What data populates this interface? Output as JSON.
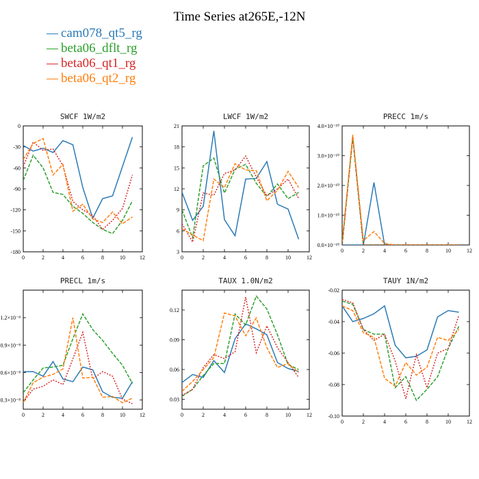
{
  "title": "Time Series at265E,-12N",
  "legend": [
    {
      "label": "cam078_qt5_rg",
      "color": "#2a7ab5"
    },
    {
      "label": "beta06_dflt_rg",
      "color": "#2ca02c"
    },
    {
      "label": "beta06_qt1_rg",
      "color": "#d62728"
    },
    {
      "label": "beta06_qt2_rg",
      "color": "#ff7f0e"
    }
  ],
  "chart_data": [
    {
      "type": "line",
      "title": "SWCF   1W/m2",
      "x": [
        0,
        1,
        2,
        3,
        4,
        5,
        6,
        7,
        8,
        9,
        10,
        11
      ],
      "xlim": [
        0,
        12
      ],
      "ylim": [
        -180,
        0
      ],
      "xticks": [
        "0",
        "2",
        "4",
        "6",
        "8",
        "10",
        "12"
      ],
      "yticks": [
        "-180",
        "-150",
        "-120",
        "-90",
        "-60",
        "-30",
        "0"
      ],
      "series": [
        {
          "name": "cam078_qt5_rg",
          "values": [
            -28,
            -36,
            -32,
            -38,
            -21,
            -27,
            -88,
            -132,
            -104,
            -100,
            -58,
            -16
          ]
        },
        {
          "name": "beta06_dflt_rg",
          "values": [
            -78,
            -42,
            -60,
            -95,
            -98,
            -115,
            -125,
            -138,
            -148,
            -154,
            -135,
            -107
          ]
        },
        {
          "name": "beta06_qt1_rg",
          "values": [
            -58,
            -23,
            -35,
            -33,
            -57,
            -108,
            -120,
            -128,
            -148,
            -135,
            -118,
            -70
          ]
        },
        {
          "name": "beta06_qt2_rg",
          "values": [
            -48,
            -25,
            -18,
            -70,
            -55,
            -122,
            -112,
            -133,
            -138,
            -123,
            -140,
            -130
          ]
        }
      ]
    },
    {
      "type": "line",
      "title": "LWCF   1W/m2",
      "x": [
        0,
        1,
        2,
        3,
        4,
        5,
        6,
        7,
        8,
        9,
        10,
        11
      ],
      "xlim": [
        0,
        12
      ],
      "ylim": [
        3,
        21
      ],
      "xticks": [
        "0",
        "2",
        "4",
        "6",
        "8",
        "10",
        "12"
      ],
      "yticks": [
        "3",
        "6",
        "9",
        "12",
        "15",
        "18",
        "21"
      ],
      "series": [
        {
          "name": "cam078_qt5_rg",
          "values": [
            11.5,
            7.5,
            9.5,
            20.3,
            7.6,
            5.3,
            13.4,
            13.5,
            15.9,
            9.8,
            9.1,
            4.8
          ]
        },
        {
          "name": "beta06_dflt_rg",
          "values": [
            9.0,
            5.0,
            15.3,
            16.4,
            11.4,
            14.8,
            15.5,
            12.8,
            10.9,
            12.7,
            10.6,
            11.5
          ]
        },
        {
          "name": "beta06_qt1_rg",
          "values": [
            7.0,
            4.4,
            11.4,
            11.1,
            14.2,
            14.7,
            16.7,
            13.7,
            11.0,
            12.0,
            13.4,
            10.6
          ]
        },
        {
          "name": "beta06_qt2_rg",
          "values": [
            6.3,
            5.4,
            4.6,
            13.4,
            12.2,
            15.6,
            14.7,
            14.6,
            10.3,
            11.8,
            14.5,
            12.2
          ]
        }
      ]
    },
    {
      "type": "line",
      "title": "PRECC   1m/s",
      "x": [
        0,
        1,
        2,
        3,
        4,
        5,
        6,
        7,
        8,
        9,
        10,
        11
      ],
      "xlim": [
        0,
        12
      ],
      "ylim": [
        0,
        4
      ],
      "xticks": [
        "0",
        "2",
        "4",
        "6",
        "8",
        "10",
        "12"
      ],
      "yticks": [
        "0.0×10⁻¹⁰",
        "1.0×10⁻¹⁰",
        "2.0×10⁻¹⁰",
        "3.0×10⁻¹⁰",
        "4.0×10⁻¹⁰"
      ],
      "series": [
        {
          "name": "cam078_qt5_rg",
          "values": [
            0,
            0,
            0,
            2.1,
            0,
            0,
            0,
            0,
            0,
            0,
            0,
            0
          ]
        },
        {
          "name": "beta06_dflt_rg",
          "values": [
            0,
            3.6,
            0,
            0,
            0,
            0,
            0,
            0,
            0,
            0,
            0,
            0
          ]
        },
        {
          "name": "beta06_qt1_rg",
          "values": [
            0,
            3.65,
            0,
            0,
            0,
            0,
            0,
            0,
            0,
            0,
            0,
            0
          ]
        },
        {
          "name": "beta06_qt2_rg",
          "values": [
            0.1,
            3.7,
            0.15,
            0.45,
            0.05,
            0,
            0,
            0,
            0,
            0,
            0,
            0
          ]
        }
      ]
    },
    {
      "type": "line",
      "title": "PRECL   1m/s",
      "x": [
        0,
        1,
        2,
        3,
        4,
        5,
        6,
        7,
        8,
        9,
        10,
        11
      ],
      "xlim": [
        0,
        12
      ],
      "ylim": [
        0.2,
        1.5
      ],
      "xticks": [
        "0",
        "2",
        "4",
        "6",
        "8",
        "10",
        "12"
      ],
      "yticks": [
        "0.3×10⁻⁸",
        "0.6×10⁻⁸",
        "0.9×10⁻⁸",
        "1.2×10⁻⁸"
      ],
      "series": [
        {
          "name": "cam078_qt5_rg",
          "values": [
            0.61,
            0.61,
            0.56,
            0.72,
            0.53,
            0.5,
            0.66,
            0.63,
            0.39,
            0.33,
            0.32,
            0.5
          ]
        },
        {
          "name": "beta06_dflt_rg",
          "values": [
            0.38,
            0.52,
            0.65,
            0.66,
            0.68,
            0.97,
            1.24,
            1.07,
            0.95,
            0.81,
            0.68,
            0.48
          ]
        },
        {
          "name": "beta06_qt1_rg",
          "values": [
            0.28,
            0.42,
            0.45,
            0.52,
            0.47,
            0.75,
            1.04,
            0.53,
            0.61,
            0.56,
            0.31,
            0.26
          ]
        },
        {
          "name": "beta06_qt2_rg",
          "values": [
            0.27,
            0.49,
            0.55,
            0.58,
            0.64,
            1.2,
            0.54,
            0.55,
            0.33,
            0.34,
            0.27,
            0.32
          ]
        }
      ]
    },
    {
      "type": "line",
      "title": "TAUX   1.0N/m2",
      "x": [
        0,
        1,
        2,
        3,
        4,
        5,
        6,
        7,
        8,
        9,
        10,
        11
      ],
      "xlim": [
        0,
        12
      ],
      "ylim": [
        0.02,
        0.14
      ],
      "xticks": [
        "0",
        "2",
        "4",
        "6",
        "8",
        "10",
        "12"
      ],
      "yticks": [
        "0.03",
        "0.06",
        "0.09",
        "0.12"
      ],
      "series": [
        {
          "name": "cam078_qt5_rg",
          "values": [
            0.047,
            0.055,
            0.052,
            0.069,
            0.057,
            0.091,
            0.106,
            0.101,
            0.095,
            0.067,
            0.061,
            0.058
          ]
        },
        {
          "name": "beta06_dflt_rg",
          "values": [
            0.033,
            0.04,
            0.054,
            0.066,
            0.066,
            0.116,
            0.105,
            0.134,
            0.121,
            0.095,
            0.065,
            0.06
          ]
        },
        {
          "name": "beta06_qt1_rg",
          "values": [
            0.034,
            0.04,
            0.062,
            0.075,
            0.071,
            0.078,
            0.133,
            0.077,
            0.104,
            0.082,
            0.067,
            0.052
          ]
        },
        {
          "name": "beta06_qt2_rg",
          "values": [
            0.038,
            0.048,
            0.06,
            0.072,
            0.117,
            0.114,
            0.094,
            0.112,
            0.082,
            0.062,
            0.066,
            0.057
          ]
        }
      ]
    },
    {
      "type": "line",
      "title": "TAUY   1N/m2",
      "x": [
        0,
        1,
        2,
        3,
        4,
        5,
        6,
        7,
        8,
        9,
        10,
        11
      ],
      "xlim": [
        0,
        12
      ],
      "ylim": [
        -0.1,
        -0.02
      ],
      "xticks": [
        "0",
        "2",
        "4",
        "6",
        "8",
        "10",
        "12"
      ],
      "yticks": [
        "-0.10",
        "-0.08",
        "-0.06",
        "-0.04",
        "-0.02"
      ],
      "series": [
        {
          "name": "cam078_qt5_rg",
          "values": [
            -0.03,
            -0.04,
            -0.038,
            -0.035,
            -0.03,
            -0.055,
            -0.063,
            -0.062,
            -0.058,
            -0.037,
            -0.033,
            -0.034
          ]
        },
        {
          "name": "beta06_dflt_rg",
          "values": [
            -0.027,
            -0.029,
            -0.045,
            -0.048,
            -0.048,
            -0.082,
            -0.075,
            -0.09,
            -0.083,
            -0.075,
            -0.057,
            -0.043
          ]
        },
        {
          "name": "beta06_qt1_rg",
          "values": [
            -0.026,
            -0.028,
            -0.045,
            -0.052,
            -0.048,
            -0.065,
            -0.089,
            -0.061,
            -0.082,
            -0.06,
            -0.057,
            -0.036
          ]
        },
        {
          "name": "beta06_qt2_rg",
          "values": [
            -0.03,
            -0.033,
            -0.047,
            -0.05,
            -0.076,
            -0.081,
            -0.066,
            -0.074,
            -0.069,
            -0.05,
            -0.052,
            -0.045
          ]
        }
      ]
    }
  ]
}
